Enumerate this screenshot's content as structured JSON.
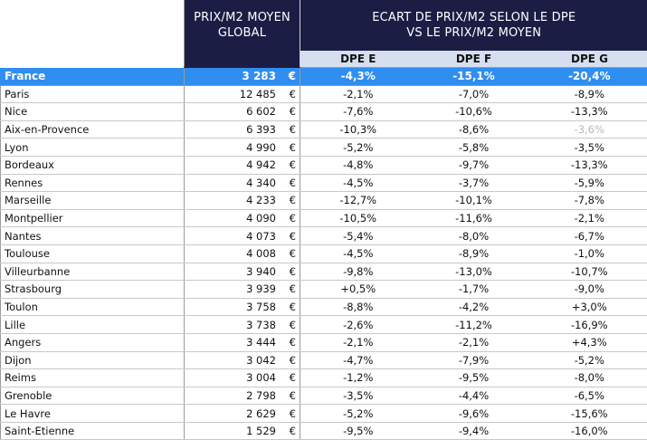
{
  "header": {
    "price_title_line1": "PRIX/M2 MOYEN",
    "price_title_line2": "GLOBAL",
    "ecart_title_line1": "ECART DE PRIX/M2 SELON LE DPE",
    "ecart_title_line2": "VS LE PRIX/M2 MOYEN",
    "dpe_columns": [
      "DPE E",
      "DPE F",
      "DPE G"
    ]
  },
  "currency_symbol": "€",
  "france": {
    "city": "France",
    "price": "3 283",
    "dpe_e": "-4,3%",
    "dpe_f": "-15,1%",
    "dpe_g": "-20,4%"
  },
  "rows": [
    {
      "city": "Paris",
      "price": "12 485",
      "dpe_e": "-2,1%",
      "dpe_f": "-7,0%",
      "dpe_g": "-8,9%"
    },
    {
      "city": "Nice",
      "price": "6 602",
      "dpe_e": "-7,6%",
      "dpe_f": "-10,6%",
      "dpe_g": "-13,3%"
    },
    {
      "city": "Aix-en-Provence",
      "price": "6 393",
      "dpe_e": "-10,3%",
      "dpe_f": "-8,6%",
      "dpe_g": "-3,6%"
    },
    {
      "city": "Lyon",
      "price": "4 990",
      "dpe_e": "-5,2%",
      "dpe_f": "-5,8%",
      "dpe_g": "-3,5%"
    },
    {
      "city": "Bordeaux",
      "price": "4 942",
      "dpe_e": "-4,8%",
      "dpe_f": "-9,7%",
      "dpe_g": "-13,3%"
    },
    {
      "city": "Rennes",
      "price": "4 340",
      "dpe_e": "-4,5%",
      "dpe_f": "-3,7%",
      "dpe_g": "-5,9%"
    },
    {
      "city": "Marseille",
      "price": "4 233",
      "dpe_e": "-12,7%",
      "dpe_f": "-10,1%",
      "dpe_g": "-7,8%"
    },
    {
      "city": "Montpellier",
      "price": "4 090",
      "dpe_e": "-10,5%",
      "dpe_f": "-11,6%",
      "dpe_g": "-2,1%"
    },
    {
      "city": "Nantes",
      "price": "4 073",
      "dpe_e": "-5,4%",
      "dpe_f": "-8,0%",
      "dpe_g": "-6,7%"
    },
    {
      "city": "Toulouse",
      "price": "4 008",
      "dpe_e": "-4,5%",
      "dpe_f": "-8,9%",
      "dpe_g": "-1,0%"
    },
    {
      "city": "Villeurbanne",
      "price": "3 940",
      "dpe_e": "-9,8%",
      "dpe_f": "-13,0%",
      "dpe_g": "-10,7%"
    },
    {
      "city": "Strasbourg",
      "price": "3 939",
      "dpe_e": "+0,5%",
      "dpe_f": "-1,7%",
      "dpe_g": "-9,0%"
    },
    {
      "city": "Toulon",
      "price": "3 758",
      "dpe_e": "-8,8%",
      "dpe_f": "-4,2%",
      "dpe_g": "+3,0%"
    },
    {
      "city": "Lille",
      "price": "3 738",
      "dpe_e": "-2,6%",
      "dpe_f": "-11,2%",
      "dpe_g": "-16,9%"
    },
    {
      "city": "Angers",
      "price": "3 444",
      "dpe_e": "-2,1%",
      "dpe_f": "-2,1%",
      "dpe_g": "+4,3%"
    },
    {
      "city": "Dijon",
      "price": "3 042",
      "dpe_e": "-4,7%",
      "dpe_f": "-7,9%",
      "dpe_g": "-5,2%"
    },
    {
      "city": "Reims",
      "price": "3 004",
      "dpe_e": "-1,2%",
      "dpe_f": "-9,5%",
      "dpe_g": "-8,0%"
    },
    {
      "city": "Grenoble",
      "price": "2 798",
      "dpe_e": "-3,5%",
      "dpe_f": "-4,4%",
      "dpe_g": "-6,5%"
    },
    {
      "city": "Le Havre",
      "price": "2 629",
      "dpe_e": "-5,2%",
      "dpe_f": "-9,6%",
      "dpe_g": "-15,6%"
    },
    {
      "city": "Saint-Etienne",
      "price": "1 529",
      "dpe_e": "-9,5%",
      "dpe_f": "-9,4%",
      "dpe_g": "-16,0%"
    }
  ],
  "faded_cells": [
    {
      "city": "Aix-en-Provence",
      "column": "dpe_g"
    }
  ],
  "colors": {
    "header_dark": "#1c1d45",
    "subheader_light": "#d6dff0",
    "france_row": "#2f8ef0",
    "faded_text": "#b8b8b8"
  }
}
